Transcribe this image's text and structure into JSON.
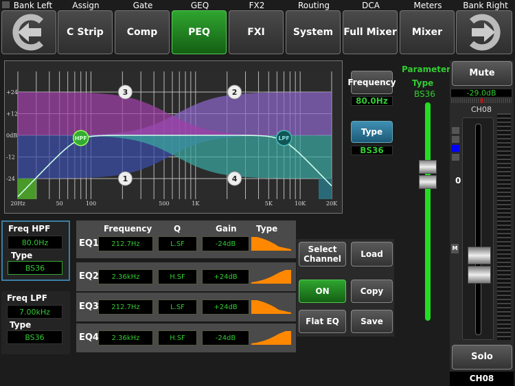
{
  "nav": {
    "bank_left": "Bank Left",
    "bank_right": "Bank Right",
    "tabs": [
      {
        "top": "Assign",
        "label": "C Strip",
        "active": false
      },
      {
        "top": "Gate",
        "label": "Comp",
        "active": false
      },
      {
        "top": "GEQ",
        "label": "PEQ",
        "active": true
      },
      {
        "top": "FX2",
        "label": "FXI",
        "active": false
      },
      {
        "top": "Routing",
        "label": "System",
        "active": false
      },
      {
        "top": "DCA",
        "label": "Full Mixer",
        "active": false
      },
      {
        "top": "Meters",
        "label": "Mixer",
        "active": false
      }
    ]
  },
  "graph": {
    "y_ticks": [
      "+24",
      "+12",
      "0dB",
      "-12",
      "-24"
    ],
    "x_ticks": [
      "20Hz",
      "50",
      "100",
      "500",
      "1K",
      "5K",
      "10K",
      "20K"
    ],
    "bands": [
      {
        "id": "1",
        "freq": 212.7,
        "gain": -24,
        "type": "L.SF",
        "color": "#3a4ea8"
      },
      {
        "id": "2",
        "freq": 2360,
        "gain": 24,
        "type": "H.SF",
        "color": "#8a64c8"
      },
      {
        "id": "3",
        "freq": 212.7,
        "gain": 24,
        "type": "L.SF",
        "color": "#a040a8"
      },
      {
        "id": "4",
        "freq": 2360,
        "gain": -24,
        "type": "H.SF",
        "color": "#3aa6a0"
      }
    ],
    "hpf_label": "HPF",
    "lpf_label": "LPF",
    "hpf_freq": 80,
    "lpf_freq": 7000
  },
  "param": {
    "frequency_label": "Frequency",
    "frequency_value": "80.0Hz",
    "type_label": "Type",
    "type_value": "BS36",
    "title": "Parameter",
    "sub": "Type",
    "value": "BS36",
    "slider_level": 0.37
  },
  "channel": {
    "mute": "Mute",
    "level": "-29.0dB",
    "name": "CH08",
    "zero": "0",
    "m": "M",
    "solo": "Solo",
    "footer": "CH08"
  },
  "hpf": {
    "title": "Freq HPF",
    "freq": "80.0Hz",
    "type_label": "Type",
    "type": "BS36"
  },
  "lpf": {
    "title": "Freq LPF",
    "freq": "7.00kHz",
    "type_label": "Type",
    "type": "BS36"
  },
  "eq_headers": {
    "frequency": "Frequency",
    "q": "Q",
    "gain": "Gain",
    "type": "Type"
  },
  "eq_rows": [
    {
      "label": "EQ1",
      "freq": "212.7Hz",
      "q": "L.SF",
      "gain": "-24dB",
      "shape": "low"
    },
    {
      "label": "EQ2",
      "freq": "2.36kHz",
      "q": "H.SF",
      "gain": "+24dB",
      "shape": "high"
    },
    {
      "label": "EQ3",
      "freq": "212.7Hz",
      "q": "L.SF",
      "gain": "+24dB",
      "shape": "low"
    },
    {
      "label": "EQ4",
      "freq": "2.36kHz",
      "q": "H.SF",
      "gain": "-24dB",
      "shape": "high"
    }
  ],
  "actions": {
    "select_channel": "Select Channel",
    "load": "Load",
    "on": "ON",
    "copy": "Copy",
    "flat_eq": "Flat EQ",
    "save": "Save"
  }
}
